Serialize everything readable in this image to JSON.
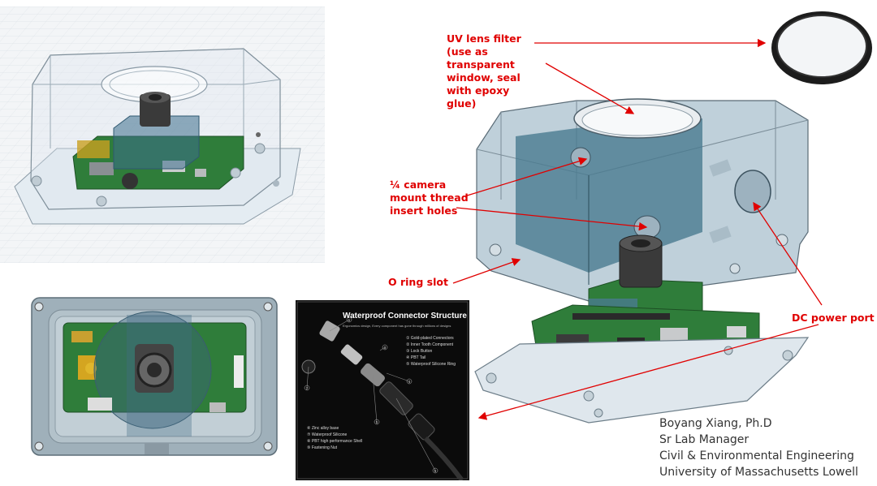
{
  "labels": {
    "uv_filter": [
      "UV lens filter",
      "(use as",
      "transparent",
      "window, seal",
      "with epoxy",
      "glue)"
    ],
    "camera_mount": [
      "¼ camera",
      "mount thread",
      "insert holes"
    ],
    "o_ring": "O ring slot",
    "dc_port": "DC power port"
  },
  "credit": {
    "name": "Boyang Xiang, Ph.D",
    "title": "Sr Lab Manager",
    "dept": "Civil & Environmental Engineering",
    "univ": "University of Massachusetts Lowell"
  },
  "connector_figure": {
    "title": "Waterproof Connector Structure",
    "subtitle": "Ergonomics design, Every component has gone through millions of designs",
    "parts_top": [
      "① Gold-plated Connectors",
      "② Inner Tooth Component",
      "③ Lock Button",
      "④ PBT Tail",
      "⑤ Waterproof Silicone Ring"
    ],
    "parts_bottom": [
      "⑥ Zinc alloy base",
      "⑦ Waterproof Silicone",
      "⑧ PBT high performance Shell",
      "⑨ Fastening Nut"
    ],
    "callout_numbers": [
      "1",
      "2",
      "3",
      "4",
      "5",
      "6",
      "7",
      "8",
      "9"
    ]
  },
  "colors": {
    "annotation": "#e00000",
    "arrow": "#e00000",
    "enclosure_tint": "#4a7a90",
    "pcb_green": "#2f7d3a",
    "connector_bg": "#0b0b0b"
  }
}
